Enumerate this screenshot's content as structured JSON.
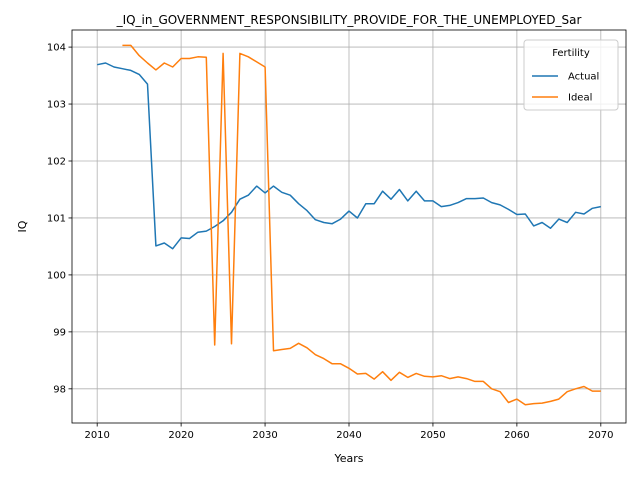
{
  "chart_data": {
    "type": "line",
    "title": "_IQ_in_GOVERNMENT_RESPONSIBILITY_PROVIDE_FOR_THE_UNEMPLOYED_Sar",
    "xlabel": "Years",
    "ylabel": "IQ",
    "xlim": [
      2007,
      2073
    ],
    "ylim": [
      97.4,
      104.3
    ],
    "xticks": [
      2010,
      2020,
      2030,
      2040,
      2050,
      2060,
      2070
    ],
    "yticks": [
      98,
      99,
      100,
      101,
      102,
      103,
      104
    ],
    "grid": true,
    "legend": {
      "title": "Fertility",
      "placement": "top-right"
    },
    "series": [
      {
        "name": "Actual",
        "color": "#1f77b4",
        "x": [
          2010,
          2011,
          2012,
          2013,
          2014,
          2015,
          2016,
          2017,
          2018,
          2019,
          2020,
          2021,
          2022,
          2023,
          2024,
          2025,
          2026,
          2027,
          2028,
          2029,
          2030,
          2031,
          2032,
          2033,
          2034,
          2035,
          2036,
          2037,
          2038,
          2039,
          2040,
          2041,
          2042,
          2043,
          2044,
          2045,
          2046,
          2047,
          2048,
          2049,
          2050,
          2051,
          2052,
          2053,
          2054,
          2055,
          2056,
          2057,
          2058,
          2059,
          2060,
          2061,
          2062,
          2063,
          2064,
          2065,
          2066,
          2067,
          2068,
          2069,
          2070
        ],
        "values": [
          103.69,
          103.72,
          103.65,
          103.62,
          103.59,
          103.52,
          103.35,
          100.51,
          100.56,
          100.46,
          100.65,
          100.64,
          100.75,
          100.77,
          100.85,
          100.95,
          101.1,
          101.33,
          101.4,
          101.56,
          101.44,
          101.56,
          101.45,
          101.4,
          101.25,
          101.13,
          100.97,
          100.92,
          100.9,
          100.98,
          101.12,
          101.0,
          101.25,
          101.25,
          101.47,
          101.33,
          101.5,
          101.3,
          101.47,
          101.3,
          101.3,
          101.2,
          101.22,
          101.27,
          101.34,
          101.34,
          101.35,
          101.27,
          101.23,
          101.15,
          101.06,
          101.07,
          100.86,
          100.92,
          100.82,
          100.98,
          100.92,
          101.1,
          101.07,
          101.17,
          101.2
        ]
      },
      {
        "name": "Ideal",
        "color": "#ff7f0e",
        "x": [
          2013,
          2014,
          2015,
          2016,
          2017,
          2018,
          2019,
          2020,
          2021,
          2022,
          2023,
          2024,
          2025,
          2026,
          2027,
          2028,
          2029,
          2030,
          2031,
          2032,
          2033,
          2034,
          2035,
          2036,
          2037,
          2038,
          2039,
          2040,
          2041,
          2042,
          2043,
          2044,
          2045,
          2046,
          2047,
          2048,
          2049,
          2050,
          2051,
          2052,
          2053,
          2054,
          2055,
          2056,
          2057,
          2058,
          2059,
          2060,
          2061,
          2062,
          2063,
          2064,
          2065,
          2066,
          2067,
          2068,
          2069,
          2070
        ],
        "values": [
          104.03,
          104.03,
          103.85,
          103.72,
          103.6,
          103.72,
          103.65,
          103.8,
          103.8,
          103.83,
          103.82,
          98.77,
          103.89,
          98.79,
          103.89,
          103.83,
          103.74,
          103.65,
          98.67,
          98.69,
          98.71,
          98.8,
          98.72,
          98.6,
          98.53,
          98.44,
          98.44,
          98.36,
          98.26,
          98.27,
          98.17,
          98.3,
          98.15,
          98.29,
          98.2,
          98.27,
          98.22,
          98.21,
          98.23,
          98.18,
          98.21,
          98.18,
          98.13,
          98.13,
          98.0,
          97.95,
          97.76,
          97.82,
          97.72,
          97.74,
          97.75,
          97.78,
          97.82,
          97.95,
          98.0,
          98.04,
          97.96,
          97.96
        ]
      }
    ]
  }
}
